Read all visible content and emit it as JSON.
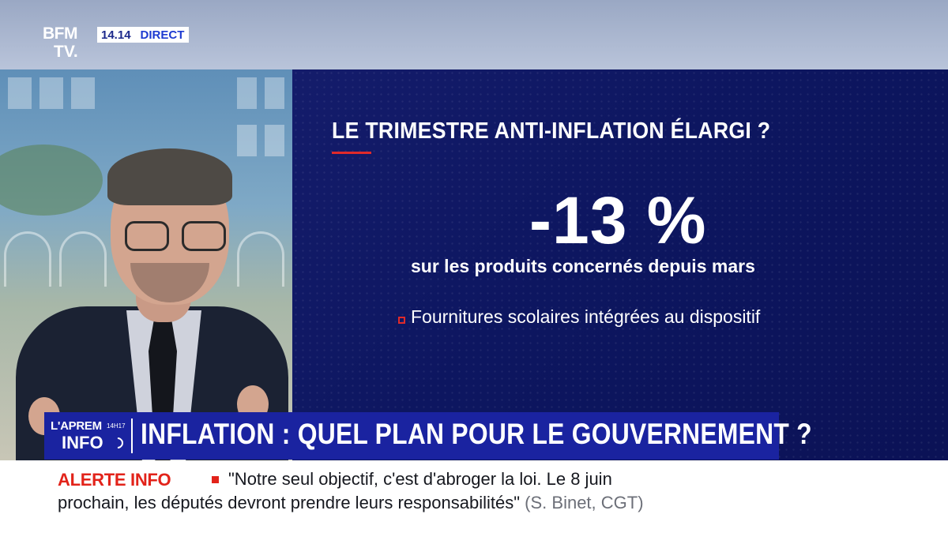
{
  "channel": {
    "logo_top": "BFM",
    "logo_bottom": "TV.",
    "time": "14.14",
    "live_label": "DIRECT"
  },
  "graphic": {
    "title": "LE TRIMESTRE ANTI-INFLATION ÉLARGI ?",
    "value": "-13 %",
    "value_caption": "sur les produits concernés depuis mars",
    "bullet": "Fournitures scolaires intégrées au dispositif",
    "accent_color": "#e02a2a",
    "background_color": "#0d1660"
  },
  "lower_third": {
    "show_line1": "L'APREM",
    "show_hours": "14H17",
    "show_line2": "INFO",
    "headline": "INFLATION : QUEL PLAN POUR LE GOUVERNEMENT ?",
    "band_color": "#1a23a0"
  },
  "ticker": {
    "label": "ALERTE INFO",
    "line1": "\"Notre seul objectif, c'est d'abroger la loi. Le 8 juin",
    "line2": "prochain, les députés devront prendre leurs responsabilités\"",
    "source": "(S. Binet, CGT)",
    "label_color": "#e2231a"
  }
}
